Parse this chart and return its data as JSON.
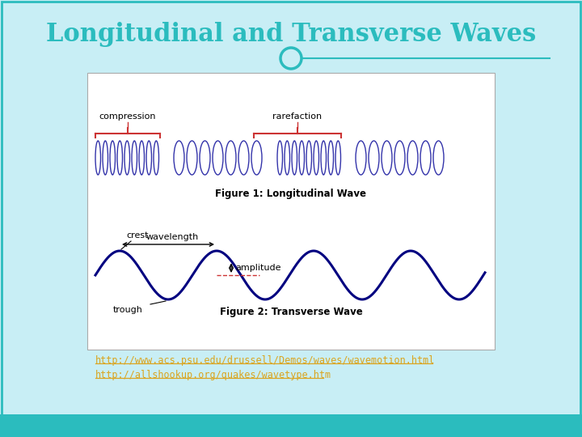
{
  "title": "Longitudinal and Transverse Waves",
  "title_color": "#2BBCBE",
  "bg_outer": "#C8EEF5",
  "accent_bar_color": "#2BBCBE",
  "panel_bg": "#FFFFFF",
  "url1": "http://www.acs.psu.edu/drussell/Demos/waves/wavemotion.html",
  "url2": "http://allshookup.org/quakes/wavetype.htm",
  "url_color": "#DAA520",
  "fig1_caption": "Figure 1: Longitudinal Wave",
  "fig2_caption": "Figure 2: Transverse Wave",
  "wave_color": "#3333AA",
  "brace_color": "#CC3333",
  "transverse_color": "#000080",
  "dashed_color": "#CC3333",
  "annotation_color": "#000000"
}
